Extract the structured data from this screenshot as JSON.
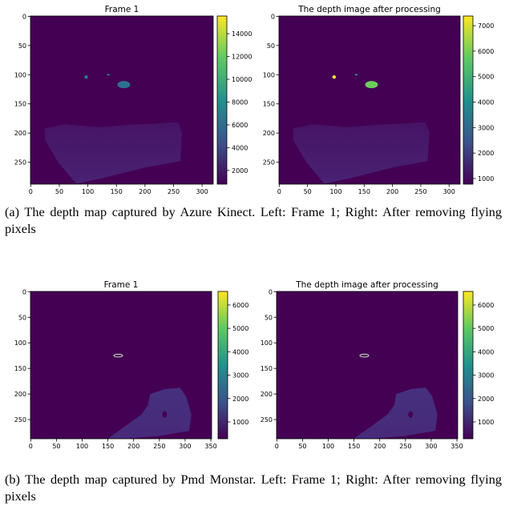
{
  "figure": {
    "panels": [
      {
        "title": "Frame 1",
        "xlim": [
          -0.5,
          319.5
        ],
        "ylim": [
          287.5,
          -0.5
        ],
        "xticks": [
          0,
          50,
          100,
          150,
          200,
          250,
          300
        ],
        "yticks": [
          0,
          50,
          100,
          150,
          200,
          250
        ],
        "clim": [
          800,
          15550
        ],
        "colorbar_ticks": [
          2000,
          4000,
          6000,
          8000,
          10000,
          12000,
          14000
        ]
      },
      {
        "title": "The depth image after processing",
        "xlim": [
          -0.5,
          319.5
        ],
        "ylim": [
          287.5,
          -0.5
        ],
        "xticks": [
          0,
          50,
          100,
          150,
          200,
          250,
          300
        ],
        "yticks": [
          0,
          50,
          100,
          150,
          200,
          250
        ],
        "clim": [
          780,
          7380
        ],
        "colorbar_ticks": [
          1000,
          2000,
          3000,
          4000,
          5000,
          6000,
          7000
        ]
      },
      {
        "title": "Frame 1",
        "xlim": [
          -0.5,
          351.5
        ],
        "ylim": [
          287.5,
          -0.5
        ],
        "xticks": [
          0,
          50,
          100,
          150,
          200,
          250,
          300,
          350
        ],
        "yticks": [
          0,
          50,
          100,
          150,
          200,
          250
        ],
        "clim": [
          280,
          6580
        ],
        "colorbar_ticks": [
          1000,
          2000,
          3000,
          4000,
          5000,
          6000
        ]
      },
      {
        "title": "The depth image after processing",
        "xlim": [
          -0.5,
          351.5
        ],
        "ylim": [
          287.5,
          -0.5
        ],
        "xticks": [
          0,
          50,
          100,
          150,
          200,
          250,
          300,
          350
        ],
        "yticks": [
          0,
          50,
          100,
          150,
          200,
          250
        ],
        "clim": [
          280,
          6580
        ],
        "colorbar_ticks": [
          1000,
          2000,
          3000,
          4000,
          5000,
          6000
        ]
      }
    ],
    "captions": [
      "(a) The depth map captured by Azure Kinect. Left: Frame 1; Right: After removing flying pixels",
      "(b) The depth map captured by Pmd Monstar. Left: Frame 1; Right: After removing flying pixels"
    ]
  }
}
